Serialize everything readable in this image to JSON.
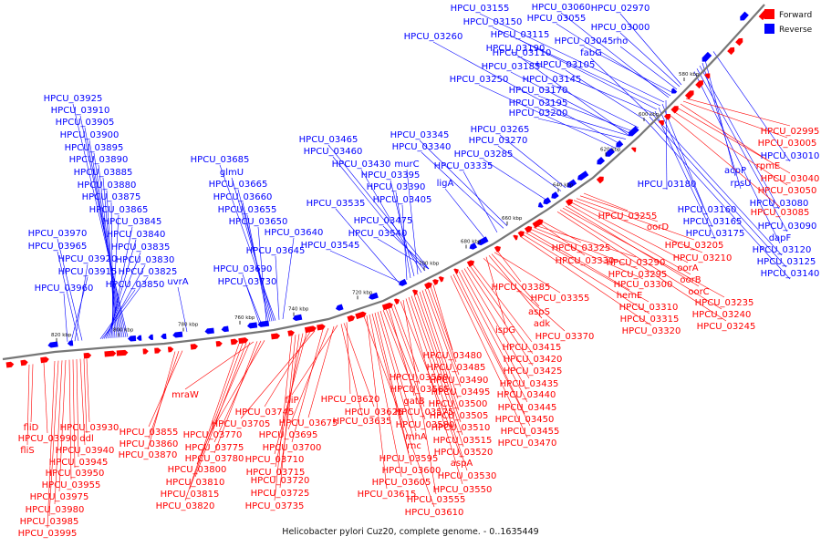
{
  "caption": "Helicobacter pylori Cuz20, complete genome. - 0..1635449",
  "legend": [
    {
      "label": "Forward",
      "color": "#ff0000"
    },
    {
      "label": "Reverse",
      "color": "#0000ff"
    }
  ],
  "colors": {
    "forward": "#ff0000",
    "reverse": "#0000ff",
    "backbone": "#777777"
  },
  "scale": {
    "unit": "kbp"
  },
  "ticks": [
    "580 kbp",
    "600 kbp",
    "620 kbp",
    "640 kbp",
    "660 kbp",
    "680 kbp",
    "700 kbp",
    "720 kbp",
    "740 kbp",
    "760 kbp",
    "780 kbp",
    "800 kbp",
    "820 kbp"
  ],
  "reverse_labels_lower": [
    "HPCU_02970",
    "HPCU_03000",
    "rho",
    "HPCU_03045",
    "HPCU_03055",
    "HPCU_03060",
    "HPCU_03155",
    "HPCU_03150",
    "HPCU_03115",
    "HPCU_03110",
    "fabG",
    "HPCU_03105",
    "HPCU_03145",
    "HPCU_03170",
    "HPCU_03195",
    "HPCU_03200",
    "HPCU_03185",
    "HPCU_03190",
    "HPCU_03260",
    "HPCU_03250",
    "HPCU_03265",
    "HPCU_03270",
    "HPCU_03285",
    "HPCU_03345",
    "HPCU_03340",
    "HPCU_03335",
    "ligA",
    "HPCU_03465",
    "HPCU_03460",
    "HPCU_03430",
    "murC",
    "HPCU_03395",
    "HPCU_03390",
    "HPCU_03405",
    "HPCU_03475",
    "HPCU_03535",
    "HPCU_03540",
    "HPCU_03545",
    "HPCU_03685",
    "glmU",
    "HPCU_03665",
    "HPCU_03660",
    "HPCU_03655",
    "HPCU_03650",
    "HPCU_03640",
    "HPCU_03645",
    "HPCU_03690",
    "HPCU_03730",
    "uvrA",
    "HPCU_03925",
    "HPCU_03910",
    "HPCU_03905",
    "HPCU_03900",
    "HPCU_03895",
    "HPCU_03890",
    "HPCU_03885",
    "HPCU_03880",
    "HPCU_03875",
    "HPCU_03865",
    "HPCU_03845",
    "HPCU_03840",
    "HPCU_03835",
    "HPCU_03830",
    "HPCU_03825",
    "HPCU_03850",
    "HPCU_03970",
    "HPCU_03965",
    "HPCU_03920",
    "HPCU_03915",
    "HPCU_03960"
  ],
  "reverse_labels_right": [
    "HPCU_03010",
    "acpP",
    "rpsU",
    "HPCU_03080",
    "HPCU_03090",
    "dapF",
    "HPCU_03180",
    "HPCU_03160",
    "HPCU_03165",
    "HPCU_03175",
    "HPCU_03120",
    "HPCU_03125",
    "HPCU_03140"
  ],
  "forward_labels": [
    "HPCU_02995",
    "HPCU_03005",
    "rpmE",
    "HPCU_03040",
    "HPCU_03050",
    "HPCU_03085",
    "HPCU_03255",
    "oorD",
    "HPCU_03205",
    "HPCU_03210",
    "oorA",
    "oorB",
    "oorC",
    "HPCU_03235",
    "HPCU_03240",
    "HPCU_03245",
    "HPCU_03325",
    "HPCU_03330",
    "HPCU_03290",
    "HPCU_03295",
    "HPCU_03300",
    "hemE",
    "HPCU_03310",
    "HPCU_03315",
    "HPCU_03320",
    "HPCU_03385",
    "HPCU_03355",
    "aspS",
    "adk",
    "ispG",
    "HPCU_03370",
    "HPCU_03415",
    "HPCU_03420",
    "HPCU_03425",
    "HPCU_03435",
    "HPCU_03440",
    "HPCU_03445",
    "HPCU_03450",
    "HPCU_03455",
    "HPCU_03470",
    "HPCU_03480",
    "HPCU_03485",
    "HPCU_03490",
    "HPCU_03495",
    "HPCU_03500",
    "HPCU_03505",
    "HPCU_03510",
    "HPCU_03515",
    "HPCU_03520",
    "HPCU_03530",
    "HPCU_03550",
    "HPCU_03555",
    "aspA",
    "HPCU_03560",
    "HPCU_03565",
    "gatB",
    "HPCU_03575",
    "HPCU_03580",
    "rnhA",
    "rnc",
    "HPCU_03595",
    "HPCU_03600",
    "HPCU_03605",
    "HPCU_03615",
    "HPCU_03610",
    "HPCU_03620",
    "HPCU_03625",
    "HPCU_03635",
    "fliP",
    "HPCU_03675",
    "HPCU_03695",
    "HPCU_03700",
    "HPCU_03705",
    "HPCU_03745",
    "HPCU_03710",
    "HPCU_03715",
    "HPCU_03720",
    "HPCU_03725",
    "HPCU_03735",
    "HPCU_03770",
    "HPCU_03775",
    "HPCU_03780",
    "mraW",
    "HPCU_03800",
    "HPCU_03810",
    "HPCU_03815",
    "HPCU_03820",
    "HPCU_03855",
    "HPCU_03860",
    "HPCU_03870",
    "HPCU_03930",
    "ddl",
    "HPCU_03940",
    "HPCU_03945",
    "HPCU_03950",
    "HPCU_03955",
    "HPCU_03975",
    "HPCU_03980",
    "HPCU_03985",
    "HPCU_03995",
    "fliD",
    "HPCU_03990",
    "fliS"
  ]
}
